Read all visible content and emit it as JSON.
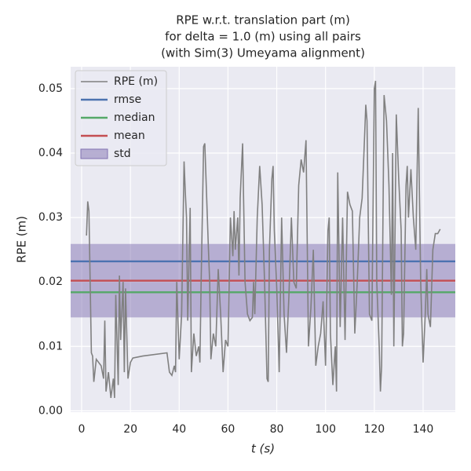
{
  "chart_data": {
    "type": "line",
    "title": [
      "RPE w.r.t. translation part (m)",
      "for delta = 1.0 (m) using all pairs",
      "(with Sim(3) Umeyama alignment)"
    ],
    "xlabel": "t (s)",
    "ylabel": "RPE (m)",
    "xlim": [
      -4.5,
      153.2
    ],
    "ylim": [
      -0.0002,
      0.0534
    ],
    "xticks": [
      0,
      20,
      40,
      60,
      80,
      100,
      120,
      140
    ],
    "yticks": [
      {
        "value": 0,
        "label": "0.00"
      },
      0.01,
      0.02,
      0.03,
      0.04,
      0.05
    ],
    "grid": true,
    "legend": "upper left",
    "series": [
      {
        "name": "RPE (m)",
        "color": "#808080",
        "x": [
          2,
          2.5,
          3,
          4,
          4.5,
          5,
          6,
          8,
          9,
          9.5,
          10,
          11,
          12,
          13,
          13.5,
          14,
          15,
          15.5,
          16,
          17,
          17.5,
          18,
          19,
          20,
          21,
          25,
          35,
          36,
          37,
          38,
          38.5,
          39,
          40,
          41,
          42,
          42.5,
          43,
          43.5,
          44.5,
          45,
          46,
          47,
          48,
          48.5,
          49,
          50,
          50.5,
          51,
          52,
          52.5,
          53,
          54,
          55,
          56,
          57,
          58,
          59,
          60,
          61,
          62,
          62.5,
          63,
          64,
          64.5,
          65,
          66,
          67,
          68,
          69,
          70,
          70.5,
          71,
          72,
          73,
          74,
          75,
          76,
          76.5,
          77,
          78,
          78.5,
          79,
          80,
          81,
          82,
          83,
          84,
          85,
          86,
          87,
          88,
          89,
          90,
          91,
          92,
          93,
          94,
          95,
          96,
          97,
          98,
          99,
          100,
          101,
          101.5,
          102,
          103,
          104,
          104.5,
          105,
          106,
          107,
          108,
          109,
          110,
          111,
          112,
          113,
          114,
          115,
          116,
          116.5,
          117,
          118,
          119,
          120,
          120.5,
          121,
          122,
          122.5,
          123,
          124,
          125,
          126,
          127,
          127.5,
          128,
          129,
          130,
          131,
          131.5,
          132,
          133,
          133.5,
          134,
          135,
          136,
          137,
          138,
          139,
          140,
          141,
          141.5,
          142,
          143,
          143.5,
          144,
          145,
          146,
          147
        ],
        "values": [
          0.0272,
          0.0325,
          0.031,
          0.009,
          0.0085,
          0.0045,
          0.008,
          0.007,
          0.005,
          0.014,
          0.003,
          0.006,
          0.002,
          0.005,
          0.002,
          0.018,
          0.004,
          0.021,
          0.011,
          0.02,
          0.006,
          0.019,
          0.005,
          0.0075,
          0.0082,
          0.0085,
          0.009,
          0.006,
          0.0055,
          0.007,
          0.006,
          0.02,
          0.008,
          0.015,
          0.0387,
          0.034,
          0.03,
          0.014,
          0.0315,
          0.006,
          0.012,
          0.0085,
          0.01,
          0.0075,
          0.02,
          0.041,
          0.0415,
          0.036,
          0.025,
          0.02,
          0.008,
          0.012,
          0.01,
          0.022,
          0.015,
          0.006,
          0.011,
          0.01,
          0.03,
          0.024,
          0.031,
          0.025,
          0.03,
          0.021,
          0.033,
          0.0415,
          0.02,
          0.015,
          0.014,
          0.0145,
          0.02,
          0.015,
          0.03,
          0.038,
          0.032,
          0.02,
          0.005,
          0.0045,
          0.025,
          0.036,
          0.038,
          0.028,
          0.019,
          0.006,
          0.03,
          0.015,
          0.009,
          0.018,
          0.03,
          0.02,
          0.019,
          0.035,
          0.039,
          0.037,
          0.042,
          0.01,
          0.016,
          0.025,
          0.007,
          0.01,
          0.012,
          0.017,
          0.007,
          0.028,
          0.03,
          0.012,
          0.004,
          0.01,
          0.003,
          0.037,
          0.013,
          0.03,
          0.011,
          0.034,
          0.032,
          0.031,
          0.012,
          0.02,
          0.03,
          0.033,
          0.0425,
          0.0475,
          0.045,
          0.015,
          0.014,
          0.05,
          0.0512,
          0.02,
          0.01,
          0.003,
          0.007,
          0.049,
          0.045,
          0.035,
          0.018,
          0.04,
          0.01,
          0.046,
          0.036,
          0.028,
          0.01,
          0.012,
          0.035,
          0.038,
          0.03,
          0.0375,
          0.03,
          0.025,
          0.047,
          0.02,
          0.0075,
          0.016,
          0.022,
          0.015,
          0.013,
          0.019,
          0.025,
          0.0275,
          0.0275,
          0.0282
        ]
      }
    ],
    "hlines": [
      {
        "name": "rmse",
        "color": "#4c72b0",
        "value": 0.0232
      },
      {
        "name": "median",
        "color": "#55a868",
        "value": 0.0184
      },
      {
        "name": "mean",
        "color": "#c44e52",
        "value": 0.0202
      }
    ],
    "band": {
      "name": "std",
      "color": "#8172b2",
      "value": 0.0057
    }
  }
}
